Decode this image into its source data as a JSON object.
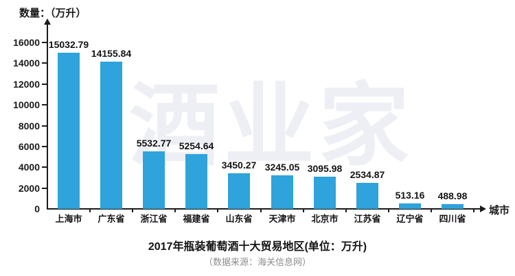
{
  "watermark": "酒业家",
  "chart_data": {
    "type": "bar",
    "categories": [
      "上海市",
      "广东省",
      "浙江省",
      "福建省",
      "山东省",
      "天津市",
      "北京市",
      "江苏省",
      "辽宁省",
      "四川省"
    ],
    "values": [
      15032.79,
      14155.84,
      5532.77,
      5254.64,
      3450.27,
      3245.05,
      3095.98,
      2534.87,
      513.16,
      488.98
    ],
    "value_labels": [
      "15032.79",
      "14155.84",
      "5532.77",
      "5254.64",
      "3450.27",
      "3245.05",
      "3095.98",
      "2534.87",
      "513.16",
      "488.98"
    ],
    "y_axis_label": "数量：（万升）",
    "x_axis_label": "城市",
    "y_ticks": [
      0,
      2000,
      4000,
      6000,
      8000,
      10000,
      12000,
      14000,
      16000
    ],
    "ylim": [
      0,
      16000
    ],
    "title": "2017年瓶装葡萄酒十大贸易地区(单位：万升)",
    "subtitle": "（数据来源：海关信息网）",
    "bar_color": "#2fa3db",
    "axis_color": "#1a1a1a",
    "watermark_color": "#edeff5",
    "grid": false,
    "legend": false
  }
}
